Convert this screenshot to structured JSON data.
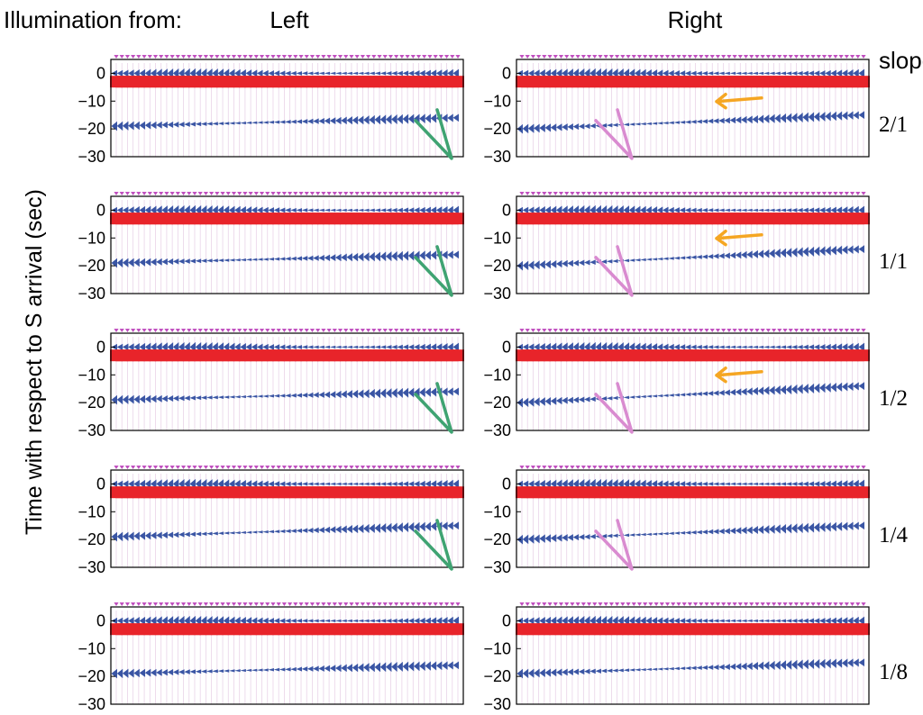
{
  "header": {
    "illum_label": "Illumination from:",
    "left_label": "Left",
    "right_label": "Right",
    "slope_label": "slope"
  },
  "chart_data": {
    "type": "seismogram-panels",
    "title": "",
    "ylabel": "Time with respect to S arrival (sec)",
    "ylim": [
      -30,
      5
    ],
    "yticks": [
      0,
      -10,
      -20,
      -30
    ],
    "columns": [
      "Left",
      "Right"
    ],
    "rows": [
      "2/1",
      "1/1",
      "1/2",
      "1/4",
      "1/8"
    ],
    "colors": {
      "positive_pulse": "#e8242a",
      "negative_pulse": "#3a55a4",
      "station_marker": "#c04fbf",
      "trace_line": "#e9d3e8",
      "left_arrow": "#3fa372",
      "right_lower_arrow": "#d98bd0",
      "right_upper_arrow": "#f5a623"
    },
    "panels": [
      {
        "row": "2/1",
        "column": "Left",
        "phases": [
          {
            "type": "negative",
            "t_start": 0,
            "t_end": 0,
            "extent": [
              0,
              1
            ]
          },
          {
            "type": "positive",
            "t_start": -3,
            "t_end": -3,
            "extent": [
              0,
              1
            ]
          },
          {
            "type": "negative",
            "t_start": -19,
            "t_end": -16,
            "extent": [
              0,
              1
            ]
          }
        ],
        "arrow": "green"
      },
      {
        "row": "2/1",
        "column": "Right",
        "phases": [
          {
            "type": "negative",
            "t_start": 0,
            "t_end": 0,
            "extent": [
              0,
              1
            ]
          },
          {
            "type": "positive",
            "t_start": -3,
            "t_end": -3,
            "extent": [
              0,
              1
            ]
          },
          {
            "type": "negative",
            "t_start": -20,
            "t_end": -15,
            "extent": [
              0,
              1
            ]
          }
        ],
        "arrow": "pink",
        "orange_arrow": true
      },
      {
        "row": "1/1",
        "column": "Left",
        "phases": [
          {
            "type": "negative",
            "t_start": 0,
            "t_end": 0,
            "extent": [
              0,
              1
            ]
          },
          {
            "type": "positive",
            "t_start": -3,
            "t_end": -3,
            "extent": [
              0,
              1
            ]
          },
          {
            "type": "negative",
            "t_start": -19,
            "t_end": -16,
            "extent": [
              0,
              1
            ]
          }
        ],
        "arrow": "green"
      },
      {
        "row": "1/1",
        "column": "Right",
        "phases": [
          {
            "type": "negative",
            "t_start": 0,
            "t_end": 0,
            "extent": [
              0,
              1
            ]
          },
          {
            "type": "positive",
            "t_start": -3,
            "t_end": -3,
            "extent": [
              0,
              1
            ]
          },
          {
            "type": "negative",
            "t_start": -20,
            "t_end": -14,
            "extent": [
              0,
              1
            ]
          }
        ],
        "arrow": "pink",
        "orange_arrow": true
      },
      {
        "row": "1/2",
        "column": "Left",
        "phases": [
          {
            "type": "negative",
            "t_start": 0,
            "t_end": 0,
            "extent": [
              0,
              1
            ]
          },
          {
            "type": "positive",
            "t_start": -3,
            "t_end": -3,
            "extent": [
              0,
              1
            ]
          },
          {
            "type": "negative",
            "t_start": -19,
            "t_end": -16,
            "extent": [
              0,
              1
            ]
          }
        ],
        "arrow": "green"
      },
      {
        "row": "1/2",
        "column": "Right",
        "phases": [
          {
            "type": "negative",
            "t_start": 0,
            "t_end": 0,
            "extent": [
              0,
              1
            ]
          },
          {
            "type": "positive",
            "t_start": -3,
            "t_end": -3,
            "extent": [
              0,
              1
            ]
          },
          {
            "type": "negative",
            "t_start": -20,
            "t_end": -14,
            "extent": [
              0,
              1
            ]
          }
        ],
        "arrow": "pink",
        "orange_arrow": true
      },
      {
        "row": "1/4",
        "column": "Left",
        "phases": [
          {
            "type": "negative",
            "t_start": 0,
            "t_end": 0,
            "extent": [
              0,
              1
            ]
          },
          {
            "type": "positive",
            "t_start": -3,
            "t_end": -3,
            "extent": [
              0,
              1
            ]
          },
          {
            "type": "negative",
            "t_start": -19,
            "t_end": -15,
            "extent": [
              0,
              1
            ]
          }
        ],
        "arrow": "green"
      },
      {
        "row": "1/4",
        "column": "Right",
        "phases": [
          {
            "type": "negative",
            "t_start": 0,
            "t_end": 0,
            "extent": [
              0,
              1
            ]
          },
          {
            "type": "positive",
            "t_start": -3,
            "t_end": -3,
            "extent": [
              0,
              1
            ]
          },
          {
            "type": "negative",
            "t_start": -20,
            "t_end": -15,
            "extent": [
              0,
              1
            ]
          }
        ],
        "arrow": "pink"
      },
      {
        "row": "1/8",
        "column": "Left",
        "phases": [
          {
            "type": "negative",
            "t_start": 0,
            "t_end": 0,
            "extent": [
              0,
              1
            ]
          },
          {
            "type": "positive",
            "t_start": -3,
            "t_end": -3,
            "extent": [
              0,
              1
            ]
          },
          {
            "type": "negative",
            "t_start": -19,
            "t_end": -16,
            "extent": [
              0,
              1
            ]
          }
        ]
      },
      {
        "row": "1/8",
        "column": "Right",
        "phases": [
          {
            "type": "negative",
            "t_start": 0,
            "t_end": 0,
            "extent": [
              0,
              1
            ]
          },
          {
            "type": "positive",
            "t_start": -3,
            "t_end": -3,
            "extent": [
              0,
              1
            ]
          },
          {
            "type": "negative",
            "t_start": -19,
            "t_end": -15,
            "extent": [
              0,
              1
            ]
          }
        ]
      }
    ]
  }
}
